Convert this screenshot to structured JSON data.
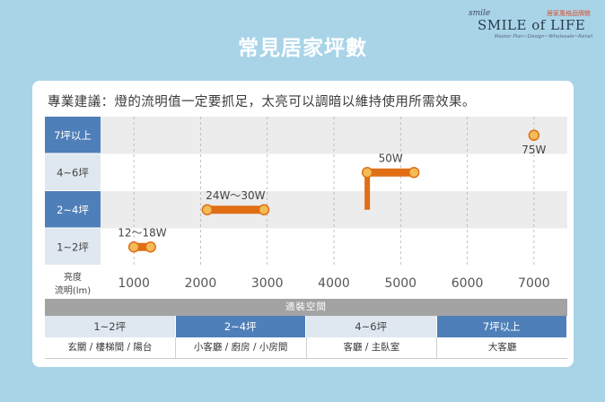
{
  "page": {
    "title": "常見居家坪數",
    "logo": {
      "small": "smile",
      "cn": "居家風格品牌館",
      "main": "SMILE of LIFE",
      "sub": "Master Plan~Design~Wholesale~Retail"
    }
  },
  "advice": "專業建議：燈的流明值一定要抓足，太亮可以調暗以維持使用所需效果。",
  "colors": {
    "accent": "#e06e14",
    "dot": "#f3bb57",
    "row_dark": "#4f7fb8",
    "row_light": "#dfe8f0",
    "stripe": "#ececec"
  },
  "chart_data": {
    "type": "range",
    "ylabel_line1": "亮度",
    "ylabel_line2": "流明(lm)",
    "categories": [
      "7坪以上",
      "4~6坪",
      "2~4坪",
      "1~2坪"
    ],
    "category_style": [
      "dark",
      "light",
      "dark",
      "light"
    ],
    "xticks": [
      1000,
      2000,
      3000,
      4000,
      5000,
      6000,
      7000
    ],
    "xlim": [
      500,
      7500
    ],
    "ranges": [
      {
        "label": "12～18W",
        "category_index": 3,
        "x_start": 1000,
        "x_end": 1250
      },
      {
        "label": "24W～30W",
        "category_index": 2,
        "x_start": 2100,
        "x_end": 2950
      },
      {
        "label": "50W",
        "category_index": 1,
        "x_start": 4500,
        "x_end": 5200
      },
      {
        "label": "75W",
        "category_index": 0,
        "x_start": 7000,
        "x_end": 7000
      }
    ],
    "connector": {
      "x": 4500,
      "from_category": 1,
      "to_category": 2
    }
  },
  "bottom": {
    "header": "適裝空間",
    "cells": [
      {
        "label": "1~2坪",
        "style": "light",
        "rooms": "玄關 / 樓梯間 / 陽台"
      },
      {
        "label": "2~4坪",
        "style": "dark",
        "rooms": "小客廳 / 廚房 / 小房間"
      },
      {
        "label": "4~6坪",
        "style": "light",
        "rooms": "客廳 / 主臥室"
      },
      {
        "label": "7坪以上",
        "style": "dark",
        "rooms": "大客廳"
      }
    ]
  }
}
